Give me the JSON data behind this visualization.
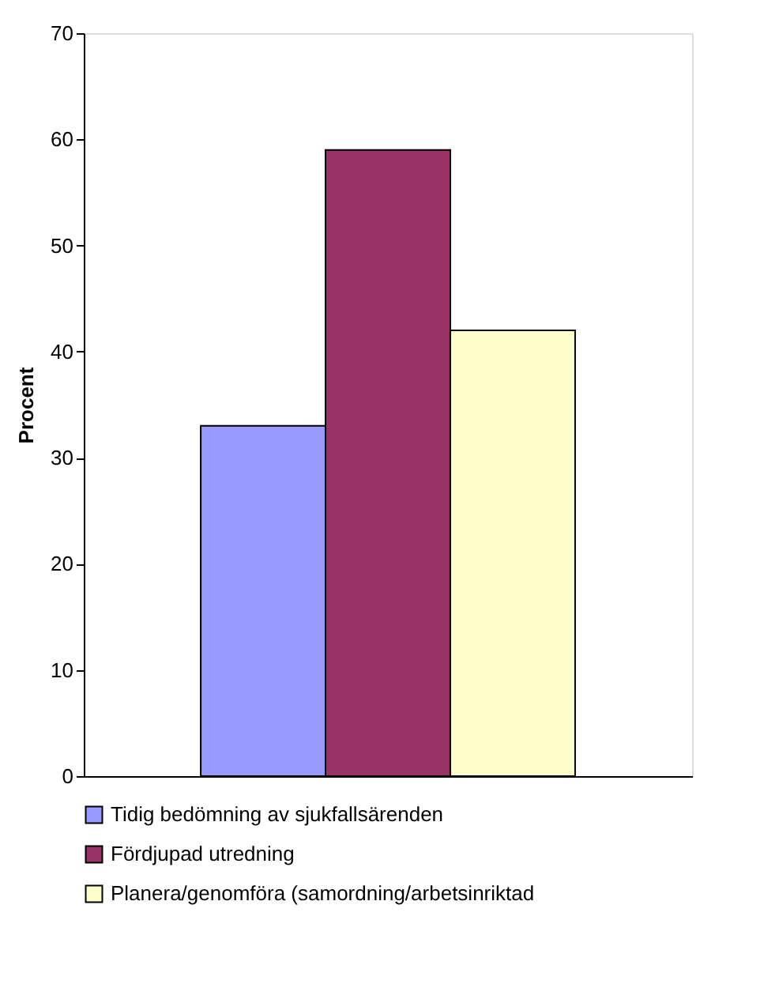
{
  "chart_data": {
    "type": "bar",
    "ylabel": "Procent",
    "categories": [
      null
    ],
    "series": [
      {
        "name": "Tidig bedömning av sjukfallsärenden",
        "color": "#9999ff",
        "values": [
          33
        ]
      },
      {
        "name": "Fördjupad utredning",
        "color": "#993366",
        "values": [
          59
        ]
      },
      {
        "name": "Planera/genomföra (samordning/arbetsinriktad",
        "color": "#ffffcc",
        "values": [
          42
        ]
      }
    ],
    "ylim": [
      0,
      70
    ],
    "yticks": [
      0,
      10,
      20,
      30,
      40,
      50,
      60,
      70
    ],
    "grid": false,
    "legend": "bottom",
    "tick_labels": "y"
  }
}
